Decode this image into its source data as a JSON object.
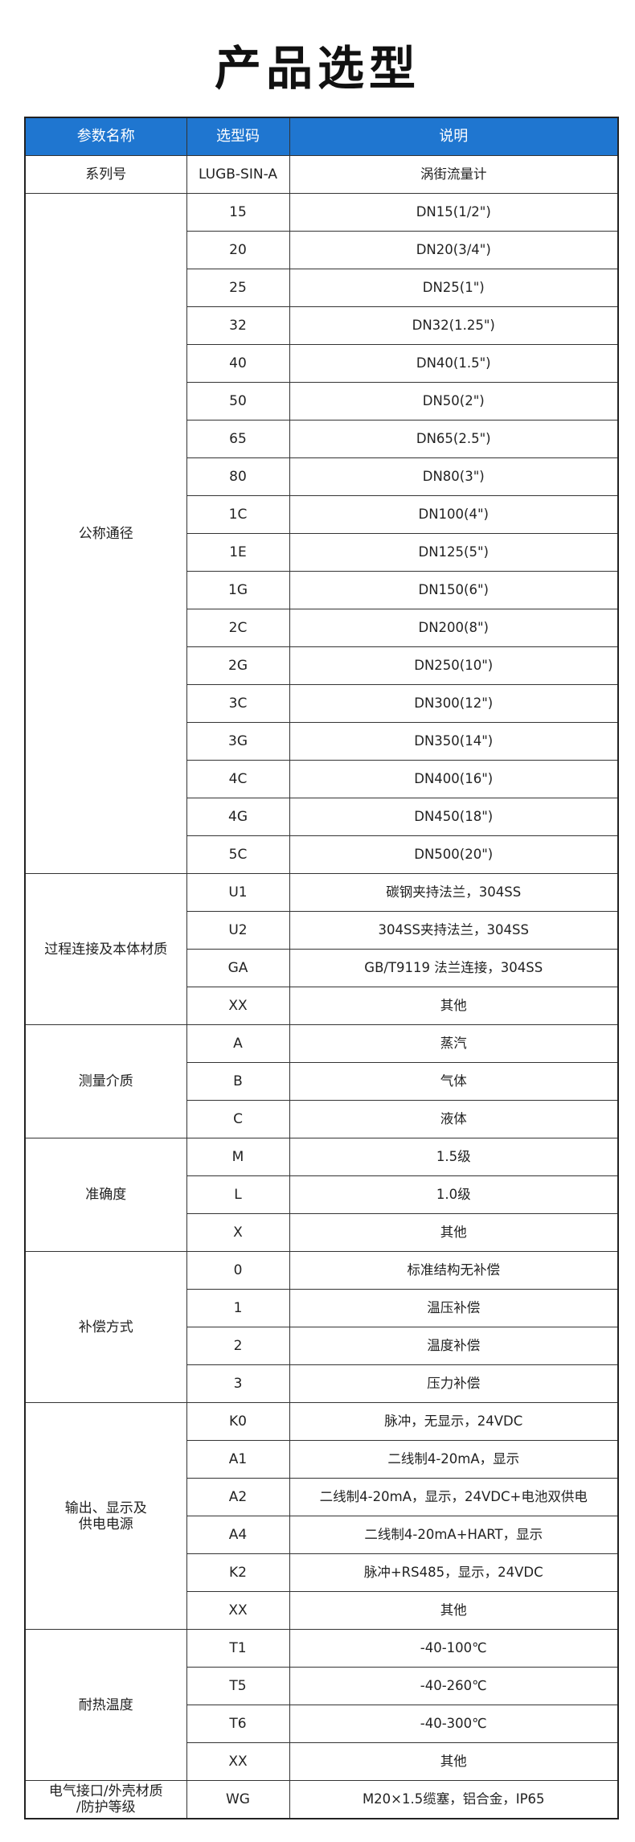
{
  "title": "产品选型",
  "table": {
    "headers": [
      "参数名称",
      "选型码",
      "说明"
    ],
    "groups": [
      {
        "name": "系列号",
        "rows": [
          [
            "LUGB-SIN-A",
            "涡街流量计"
          ]
        ]
      },
      {
        "name": "公称通径",
        "rows": [
          [
            "15",
            "DN15(1/2\")"
          ],
          [
            "20",
            "DN20(3/4\")"
          ],
          [
            "25",
            "DN25(1\")"
          ],
          [
            "32",
            "DN32(1.25\")"
          ],
          [
            "40",
            "DN40(1.5\")"
          ],
          [
            "50",
            "DN50(2\")"
          ],
          [
            "65",
            "DN65(2.5\")"
          ],
          [
            "80",
            "DN80(3\")"
          ],
          [
            "1C",
            "DN100(4\")"
          ],
          [
            "1E",
            "DN125(5\")"
          ],
          [
            "1G",
            "DN150(6\")"
          ],
          [
            "2C",
            "DN200(8\")"
          ],
          [
            "2G",
            "DN250(10\")"
          ],
          [
            "3C",
            "DN300(12\")"
          ],
          [
            "3G",
            "DN350(14\")"
          ],
          [
            "4C",
            "DN400(16\")"
          ],
          [
            "4G",
            "DN450(18\")"
          ],
          [
            "5C",
            "DN500(20\")"
          ]
        ]
      },
      {
        "name": "过程连接及本体材质",
        "rows": [
          [
            "U1",
            "碳钢夹持法兰，304SS"
          ],
          [
            "U2",
            "304SS夹持法兰，304SS"
          ],
          [
            "GA",
            "GB/T9119 法兰连接，304SS"
          ],
          [
            "XX",
            "其他"
          ]
        ]
      },
      {
        "name": "测量介质",
        "rows": [
          [
            "A",
            "蒸汽"
          ],
          [
            "B",
            "气体"
          ],
          [
            "C",
            "液体"
          ]
        ]
      },
      {
        "name": "准确度",
        "rows": [
          [
            "M",
            "1.5级"
          ],
          [
            "L",
            "1.0级"
          ],
          [
            "X",
            "其他"
          ]
        ]
      },
      {
        "name": "补偿方式",
        "rows": [
          [
            "0",
            "标准结构无补偿"
          ],
          [
            "1",
            "温压补偿"
          ],
          [
            "2",
            "温度补偿"
          ],
          [
            "3",
            "压力补偿"
          ]
        ]
      },
      {
        "name": "输出、显示及\n供电电源",
        "rows": [
          [
            "K0",
            "脉冲，无显示，24VDC"
          ],
          [
            "A1",
            "二线制4-20mA，显示"
          ],
          [
            "A2",
            "二线制4-20mA，显示，24VDC+电池双供电"
          ],
          [
            "A4",
            "二线制4-20mA+HART，显示"
          ],
          [
            "K2",
            "脉冲+RS485，显示，24VDC"
          ],
          [
            "XX",
            "其他"
          ]
        ]
      },
      {
        "name": "耐热温度",
        "rows": [
          [
            "T1",
            "-40-100℃"
          ],
          [
            "T5",
            "-40-260℃"
          ],
          [
            "T6",
            "-40-300℃"
          ],
          [
            "XX",
            "其他"
          ]
        ]
      },
      {
        "name": "电气接口/外壳材质\n/防护等级",
        "rows": [
          [
            "WG",
            "M20×1.5缆塞，铝合金，IP65"
          ]
        ]
      }
    ]
  }
}
